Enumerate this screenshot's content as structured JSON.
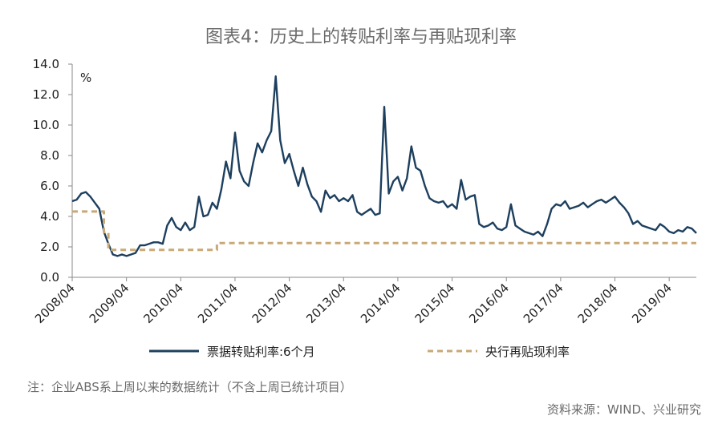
{
  "chart_data": {
    "type": "line",
    "title": "图表4：历史上的转贴利率与再贴现利率",
    "unit_label": "%",
    "ylim": [
      0,
      14
    ],
    "y_ticks": [
      "0.0",
      "2.0",
      "4.0",
      "6.0",
      "8.0",
      "10.0",
      "12.0",
      "14.0"
    ],
    "x_range": [
      "2008-04",
      "2019-10"
    ],
    "x_tick_labels": [
      "2008/04",
      "2009/04",
      "2010/04",
      "2011/04",
      "2012/04",
      "2013/04",
      "2014/04",
      "2015/04",
      "2016/04",
      "2017/04",
      "2018/04",
      "2019/04"
    ],
    "legend_position": "bottom",
    "grid": false,
    "series": [
      {
        "name": "票据转贴利率:6个月",
        "color": "#1d3f5e",
        "style": "solid",
        "points": [
          [
            "2008-04",
            5.0
          ],
          [
            "2008-05",
            5.1
          ],
          [
            "2008-06",
            5.5
          ],
          [
            "2008-07",
            5.6
          ],
          [
            "2008-08",
            5.3
          ],
          [
            "2008-09",
            4.9
          ],
          [
            "2008-10",
            4.5
          ],
          [
            "2008-11",
            3.0
          ],
          [
            "2008-12",
            2.2
          ],
          [
            "2009-01",
            1.5
          ],
          [
            "2009-02",
            1.4
          ],
          [
            "2009-03",
            1.5
          ],
          [
            "2009-04",
            1.4
          ],
          [
            "2009-05",
            1.5
          ],
          [
            "2009-06",
            1.6
          ],
          [
            "2009-07",
            2.1
          ],
          [
            "2009-08",
            2.1
          ],
          [
            "2009-09",
            2.2
          ],
          [
            "2009-10",
            2.3
          ],
          [
            "2009-11",
            2.3
          ],
          [
            "2009-12",
            2.2
          ],
          [
            "2010-01",
            3.4
          ],
          [
            "2010-02",
            3.9
          ],
          [
            "2010-03",
            3.3
          ],
          [
            "2010-04",
            3.1
          ],
          [
            "2010-05",
            3.6
          ],
          [
            "2010-06",
            3.1
          ],
          [
            "2010-07",
            3.3
          ],
          [
            "2010-08",
            5.3
          ],
          [
            "2010-09",
            4.0
          ],
          [
            "2010-10",
            4.1
          ],
          [
            "2010-11",
            4.9
          ],
          [
            "2010-12",
            4.5
          ],
          [
            "2011-01",
            5.8
          ],
          [
            "2011-02",
            7.6
          ],
          [
            "2011-03",
            6.5
          ],
          [
            "2011-04",
            9.5
          ],
          [
            "2011-05",
            7.0
          ],
          [
            "2011-06",
            6.3
          ],
          [
            "2011-07",
            6.0
          ],
          [
            "2011-08",
            7.5
          ],
          [
            "2011-09",
            8.8
          ],
          [
            "2011-10",
            8.2
          ],
          [
            "2011-11",
            9.0
          ],
          [
            "2011-12",
            9.6
          ],
          [
            "2012-01",
            13.2
          ],
          [
            "2012-02",
            9.0
          ],
          [
            "2012-03",
            7.5
          ],
          [
            "2012-04",
            8.1
          ],
          [
            "2012-05",
            7.0
          ],
          [
            "2012-06",
            6.0
          ],
          [
            "2012-07",
            7.2
          ],
          [
            "2012-08",
            6.1
          ],
          [
            "2012-09",
            5.3
          ],
          [
            "2012-10",
            5.0
          ],
          [
            "2012-11",
            4.3
          ],
          [
            "2012-12",
            5.7
          ],
          [
            "2013-01",
            5.2
          ],
          [
            "2013-02",
            5.4
          ],
          [
            "2013-03",
            5.0
          ],
          [
            "2013-04",
            5.2
          ],
          [
            "2013-05",
            5.0
          ],
          [
            "2013-06",
            5.4
          ],
          [
            "2013-07",
            4.3
          ],
          [
            "2013-08",
            4.1
          ],
          [
            "2013-09",
            4.3
          ],
          [
            "2013-10",
            4.5
          ],
          [
            "2013-11",
            4.1
          ],
          [
            "2013-12",
            4.2
          ],
          [
            "2014-01",
            11.2
          ],
          [
            "2014-02",
            5.5
          ],
          [
            "2014-03",
            6.3
          ],
          [
            "2014-04",
            6.6
          ],
          [
            "2014-05",
            5.7
          ],
          [
            "2014-06",
            6.5
          ],
          [
            "2014-07",
            8.6
          ],
          [
            "2014-08",
            7.2
          ],
          [
            "2014-09",
            7.0
          ],
          [
            "2014-10",
            6.0
          ],
          [
            "2014-11",
            5.2
          ],
          [
            "2014-12",
            5.0
          ],
          [
            "2015-01",
            4.9
          ],
          [
            "2015-02",
            5.0
          ],
          [
            "2015-03",
            4.6
          ],
          [
            "2015-04",
            4.8
          ],
          [
            "2015-05",
            4.5
          ],
          [
            "2015-06",
            6.4
          ],
          [
            "2015-07",
            5.1
          ],
          [
            "2015-08",
            5.3
          ],
          [
            "2015-09",
            5.4
          ],
          [
            "2015-10",
            3.5
          ],
          [
            "2015-11",
            3.3
          ],
          [
            "2015-12",
            3.4
          ],
          [
            "2016-01",
            3.6
          ],
          [
            "2016-02",
            3.2
          ],
          [
            "2016-03",
            3.1
          ],
          [
            "2016-04",
            3.3
          ],
          [
            "2016-05",
            4.8
          ],
          [
            "2016-06",
            3.4
          ],
          [
            "2016-07",
            3.2
          ],
          [
            "2016-08",
            3.0
          ],
          [
            "2016-09",
            2.9
          ],
          [
            "2016-10",
            2.8
          ],
          [
            "2016-11",
            3.0
          ],
          [
            "2016-12",
            2.7
          ],
          [
            "2017-01",
            3.5
          ],
          [
            "2017-02",
            4.5
          ],
          [
            "2017-03",
            4.8
          ],
          [
            "2017-04",
            4.7
          ],
          [
            "2017-05",
            5.0
          ],
          [
            "2017-06",
            4.5
          ],
          [
            "2017-07",
            4.6
          ],
          [
            "2017-08",
            4.7
          ],
          [
            "2017-09",
            4.9
          ],
          [
            "2017-10",
            4.6
          ],
          [
            "2017-11",
            4.8
          ],
          [
            "2017-12",
            5.0
          ],
          [
            "2018-01",
            5.1
          ],
          [
            "2018-02",
            4.9
          ],
          [
            "2018-03",
            5.1
          ],
          [
            "2018-04",
            5.3
          ],
          [
            "2018-05",
            4.9
          ],
          [
            "2018-06",
            4.6
          ],
          [
            "2018-07",
            4.2
          ],
          [
            "2018-08",
            3.5
          ],
          [
            "2018-09",
            3.7
          ],
          [
            "2018-10",
            3.4
          ],
          [
            "2018-11",
            3.3
          ],
          [
            "2018-12",
            3.2
          ],
          [
            "2019-01",
            3.1
          ],
          [
            "2019-02",
            3.5
          ],
          [
            "2019-03",
            3.3
          ],
          [
            "2019-04",
            3.0
          ],
          [
            "2019-05",
            2.9
          ],
          [
            "2019-06",
            3.1
          ],
          [
            "2019-07",
            3.0
          ],
          [
            "2019-08",
            3.3
          ],
          [
            "2019-09",
            3.2
          ],
          [
            "2019-10",
            2.9
          ]
        ]
      },
      {
        "name": "央行再贴现利率",
        "color": "#c8a977",
        "style": "dashed",
        "points": [
          [
            "2008-04",
            4.32
          ],
          [
            "2008-11",
            4.32
          ],
          [
            "2008-11",
            2.97
          ],
          [
            "2008-12",
            2.97
          ],
          [
            "2008-12",
            1.8
          ],
          [
            "2010-12",
            1.8
          ],
          [
            "2010-12",
            2.25
          ],
          [
            "2019-10",
            2.25
          ]
        ]
      }
    ]
  },
  "footer": {
    "note": "注：企业ABS系上周以来的数据统计（不含上周已统计项目）",
    "source": "资料来源：WIND、兴业研究"
  }
}
